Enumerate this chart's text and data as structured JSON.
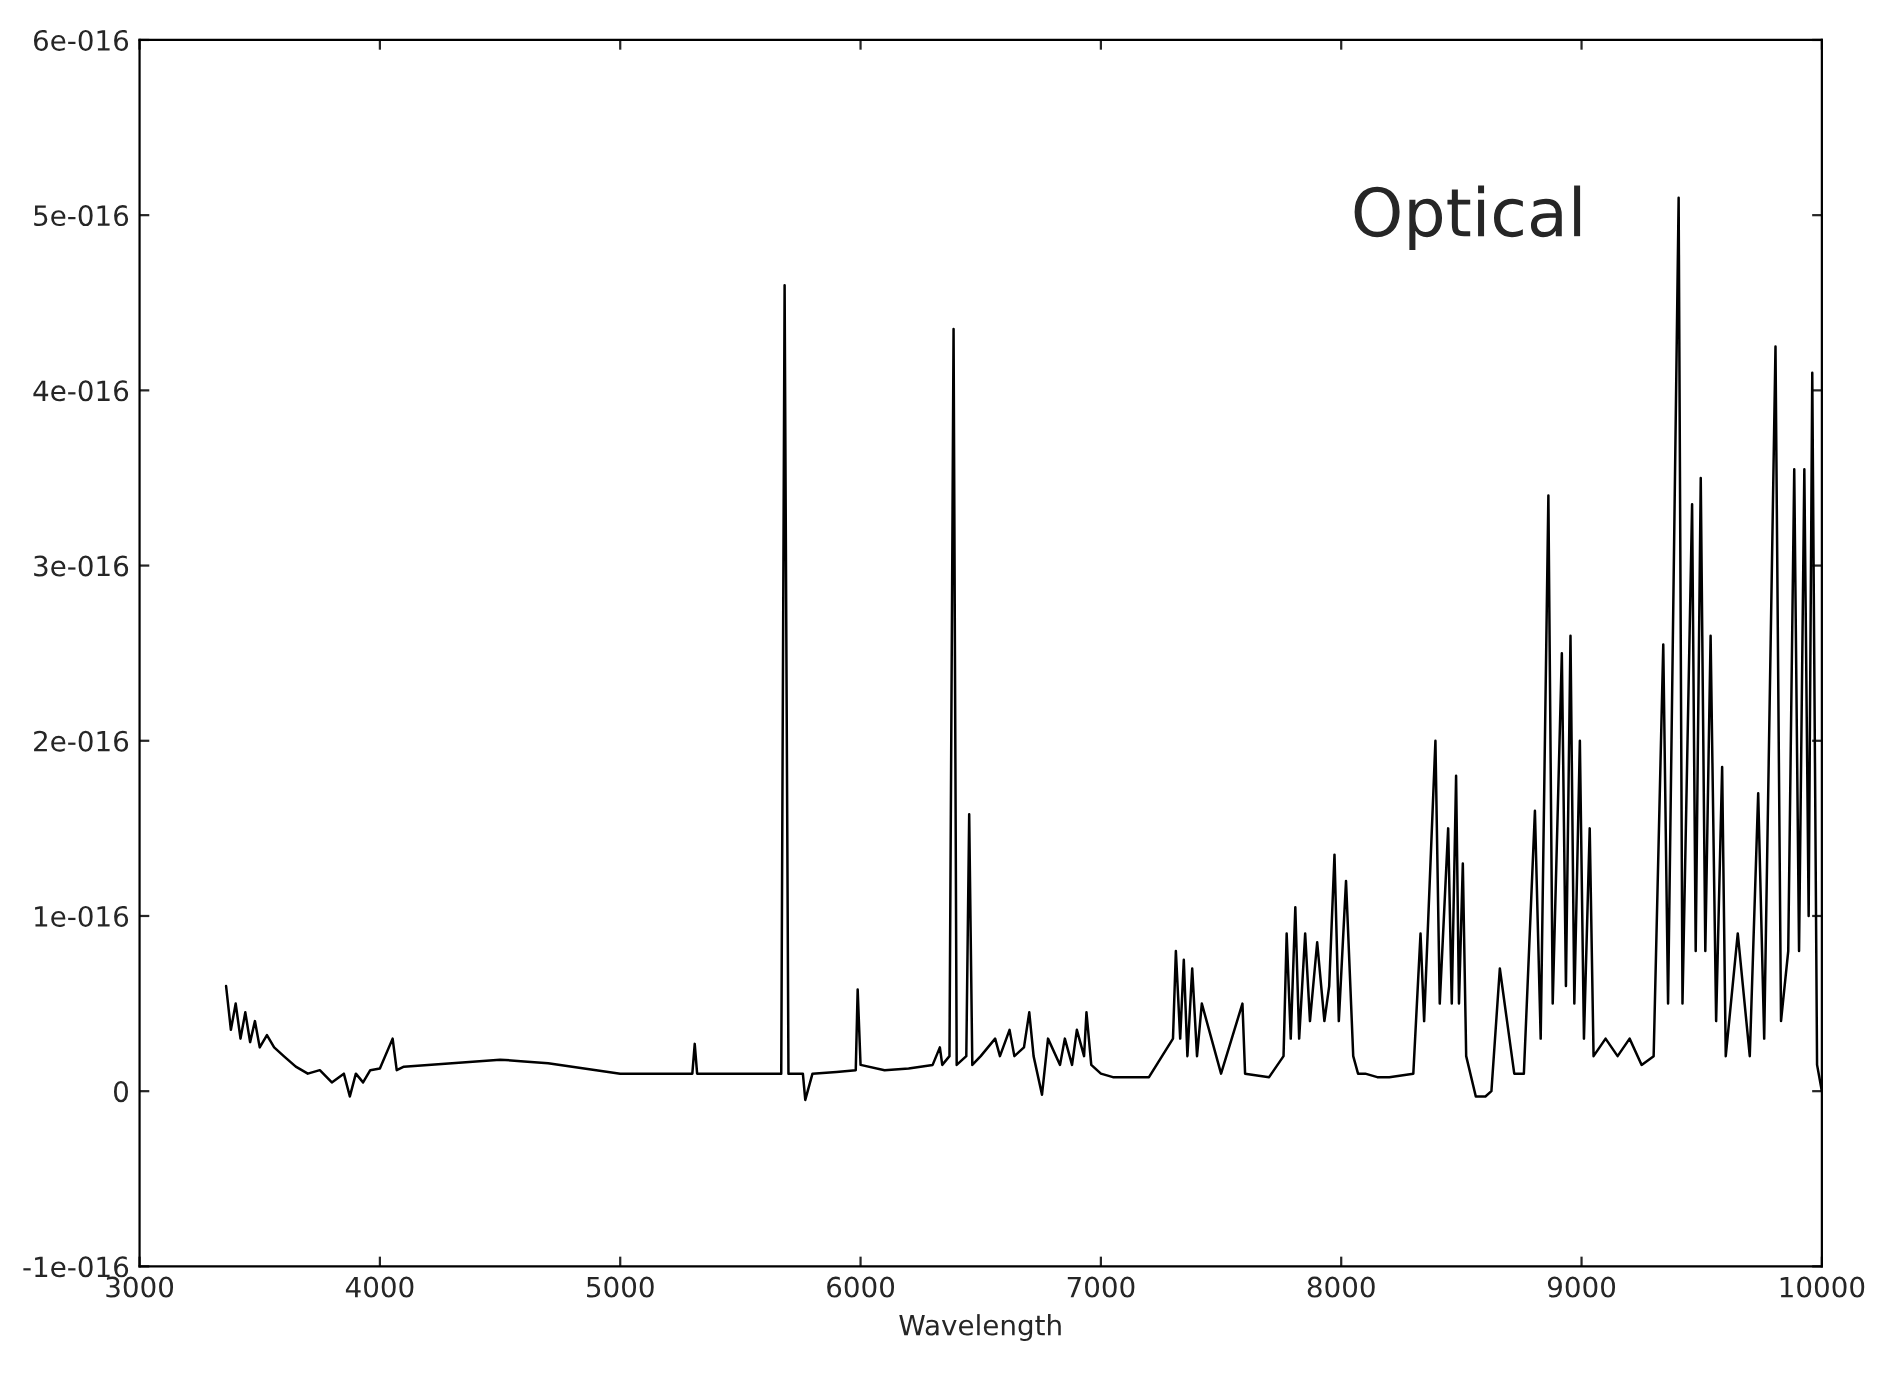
{
  "chart_data": {
    "type": "line",
    "xlabel": "Wavelength",
    "annotations": [
      "Optical"
    ],
    "color": "#000000",
    "x": [
      3360,
      3380,
      3400,
      3420,
      3440,
      3460,
      3480,
      3500,
      3530,
      3560,
      3600,
      3650,
      3700,
      3750,
      3800,
      3850,
      3875,
      3900,
      3930,
      3960,
      4000,
      4053,
      4070,
      4100,
      4200,
      4300,
      4400,
      4500,
      4600,
      4700,
      4800,
      4900,
      5000,
      5100,
      5200,
      5300,
      5310,
      5320,
      5500,
      5670,
      5684,
      5700,
      5760,
      5770,
      5800,
      5900,
      5980,
      5988,
      6000,
      6100,
      6200,
      6300,
      6330,
      6340,
      6370,
      6387,
      6400,
      6440,
      6452,
      6465,
      6500,
      6560,
      6580,
      6620,
      6640,
      6680,
      6702,
      6720,
      6755,
      6780,
      6830,
      6850,
      6880,
      6900,
      6930,
      6940,
      6960,
      7000,
      7050,
      7100,
      7200,
      7300,
      7312,
      7330,
      7345,
      7360,
      7380,
      7400,
      7420,
      7500,
      7589,
      7600,
      7700,
      7760,
      7773,
      7790,
      7809,
      7825,
      7850,
      7870,
      7900,
      7930,
      7950,
      7972,
      7990,
      8020,
      8050,
      8070,
      8100,
      8150,
      8200,
      8300,
      8330,
      8345,
      8392,
      8410,
      8445,
      8460,
      8478,
      8490,
      8506,
      8520,
      8560,
      8600,
      8625,
      8660,
      8690,
      8720,
      8760,
      8806,
      8830,
      8862,
      8880,
      8918,
      8935,
      8954,
      8970,
      8993,
      9010,
      9034,
      9050,
      9100,
      9150,
      9200,
      9250,
      9300,
      9340,
      9360,
      9404,
      9420,
      9460,
      9475,
      9496,
      9515,
      9537,
      9560,
      9585,
      9600,
      9650,
      9700,
      9735,
      9760,
      9807,
      9830,
      9860,
      9885,
      9905,
      9927,
      9945,
      9960,
      9980,
      10000
    ],
    "values": [
      6e-17,
      3.5e-17,
      5e-17,
      3e-17,
      4.5e-17,
      2.8e-17,
      4e-17,
      2.5e-17,
      3.2e-17,
      2.5e-17,
      2e-17,
      1.4e-17,
      1e-17,
      1.2e-17,
      5e-18,
      1e-17,
      -3e-18,
      1e-17,
      5e-18,
      1.2e-17,
      1.3e-17,
      3e-17,
      1.2e-17,
      1.4e-17,
      1.5e-17,
      1.6e-17,
      1.7e-17,
      1.8e-17,
      1.7e-17,
      1.6e-17,
      1.4e-17,
      1.2e-17,
      1e-17,
      1e-17,
      1e-17,
      1e-17,
      2.7e-17,
      1e-17,
      1e-17,
      1e-17,
      4.6e-16,
      1e-17,
      1e-17,
      -5e-18,
      1e-17,
      1.1e-17,
      1.2e-17,
      5.8e-17,
      1.5e-17,
      1.2e-17,
      1.3e-17,
      1.5e-17,
      2.5e-17,
      1.5e-17,
      2e-17,
      4.35e-16,
      1.5e-17,
      2e-17,
      1.58e-16,
      1.5e-17,
      2e-17,
      3e-17,
      2e-17,
      3.5e-17,
      2e-17,
      2.5e-17,
      4.5e-17,
      2e-17,
      -2e-18,
      3e-17,
      1.5e-17,
      3e-17,
      1.5e-17,
      3.5e-17,
      2e-17,
      4.5e-17,
      1.5e-17,
      1e-17,
      8e-18,
      8e-18,
      8e-18,
      3e-17,
      8e-17,
      3e-17,
      7.5e-17,
      2e-17,
      7e-17,
      2e-17,
      5e-17,
      1e-17,
      5e-17,
      1e-17,
      8e-18,
      2e-17,
      9e-17,
      3e-17,
      1.05e-16,
      3e-17,
      9e-17,
      4e-17,
      8.5e-17,
      4e-17,
      6e-17,
      1.35e-16,
      4e-17,
      1.2e-16,
      2e-17,
      1e-17,
      1e-17,
      8e-18,
      8e-18,
      1e-17,
      9e-17,
      4e-17,
      2e-16,
      5e-17,
      1.5e-16,
      5e-17,
      1.8e-16,
      5e-17,
      1.3e-16,
      2e-17,
      -3e-18,
      -3e-18,
      0,
      7e-17,
      4e-17,
      1e-17,
      1e-17,
      1.6e-16,
      3e-17,
      3.4e-16,
      5e-17,
      2.5e-16,
      6e-17,
      2.6e-16,
      5e-17,
      2e-16,
      3e-17,
      1.5e-16,
      2e-17,
      3e-17,
      2e-17,
      3e-17,
      1.5e-17,
      2e-17,
      2.55e-16,
      5e-17,
      5.1e-16,
      5e-17,
      3.35e-16,
      8e-17,
      3.5e-16,
      8e-17,
      2.6e-16,
      4e-17,
      1.85e-16,
      2e-17,
      9e-17,
      2e-17,
      1.7e-16,
      3e-17,
      4.25e-16,
      4e-17,
      8e-17,
      3.55e-16,
      8e-17,
      3.55e-16,
      1e-16,
      4.1e-16,
      1.5e-17,
      0
    ],
    "xlim": [
      3000,
      10000
    ],
    "xticks": [
      3000,
      4000,
      5000,
      6000,
      7000,
      8000,
      9000,
      10000
    ],
    "ylim": [
      -1e-16,
      6e-16
    ],
    "yticks": [
      {
        "value": -1e-16,
        "label": "-1e-016"
      },
      {
        "value": 0,
        "label": "0"
      },
      {
        "value": 1e-16,
        "label": "1e-016"
      },
      {
        "value": 2e-16,
        "label": "2e-016"
      },
      {
        "value": 3e-16,
        "label": "3e-016"
      },
      {
        "value": 4e-16,
        "label": "4e-016"
      },
      {
        "value": 5e-16,
        "label": "5e-016"
      },
      {
        "value": 6e-16,
        "label": "6e-016"
      }
    ],
    "grid": false,
    "legend": false
  }
}
